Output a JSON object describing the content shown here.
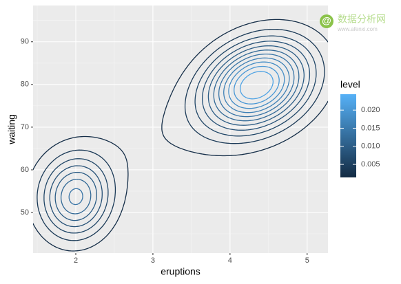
{
  "chart_data": {
    "type": "contour",
    "x_label": "eruptions",
    "y_label": "waiting",
    "xlim": [
      1.446,
      5.27
    ],
    "ylim": [
      40.5,
      98.5
    ],
    "xticks": [
      2,
      3,
      4,
      5
    ],
    "yticks": [
      50,
      60,
      70,
      80,
      90
    ],
    "grid": true,
    "levels": [
      0.002,
      0.004,
      0.006,
      0.008,
      0.01,
      0.012,
      0.014,
      0.016,
      0.018,
      0.02,
      0.022
    ],
    "legend": {
      "title": "level",
      "lim": [
        0.0014,
        0.0244
      ],
      "ticks": [
        0.005,
        {
          "value": 0.01,
          "label": "0.010"
        },
        0.015,
        {
          "value": 0.02,
          "label": "0.020"
        }
      ],
      "low_color": "#132B43",
      "high_color": "#56B1F7"
    }
  },
  "watermark": {
    "logo": "@",
    "name": "数据分析网",
    "url": "www.afenxi.com"
  }
}
